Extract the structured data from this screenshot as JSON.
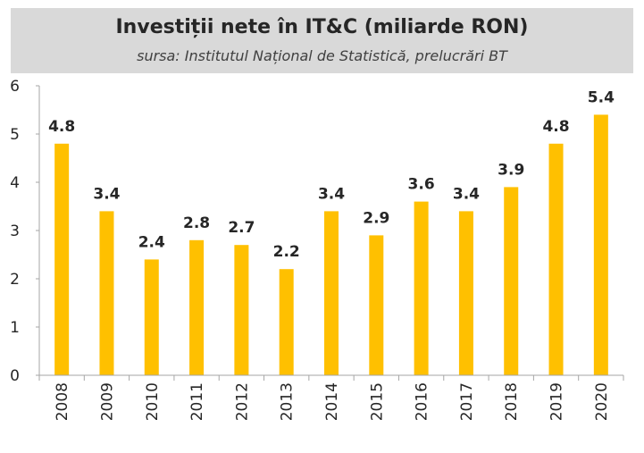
{
  "chart_data": {
    "type": "bar",
    "title": "Investiții nete în IT&C (miliarde RON)",
    "subtitle": "sursa: Institutul Național de Statistică, prelucrări BT",
    "xlabel": "",
    "ylabel": "",
    "categories": [
      "2008",
      "2009",
      "2010",
      "2011",
      "2012",
      "2013",
      "2014",
      "2015",
      "2016",
      "2017",
      "2018",
      "2019",
      "2020"
    ],
    "values": [
      4.8,
      3.4,
      2.4,
      2.8,
      2.7,
      2.2,
      3.4,
      2.9,
      3.6,
      3.4,
      3.9,
      4.8,
      5.4
    ],
    "value_labels": [
      "4.8",
      "3.4",
      "2.4",
      "2.8",
      "2.7",
      "2.2",
      "3.4",
      "2.9",
      "3.6",
      "3.4",
      "3.9",
      "4.8",
      "5.4"
    ],
    "ylim": [
      0,
      6
    ],
    "yticks": [
      "0",
      "1",
      "2",
      "3",
      "4",
      "5",
      "6"
    ],
    "grid": false,
    "bar_color": "#ffc000",
    "axis_color": "#a6a6a6"
  }
}
